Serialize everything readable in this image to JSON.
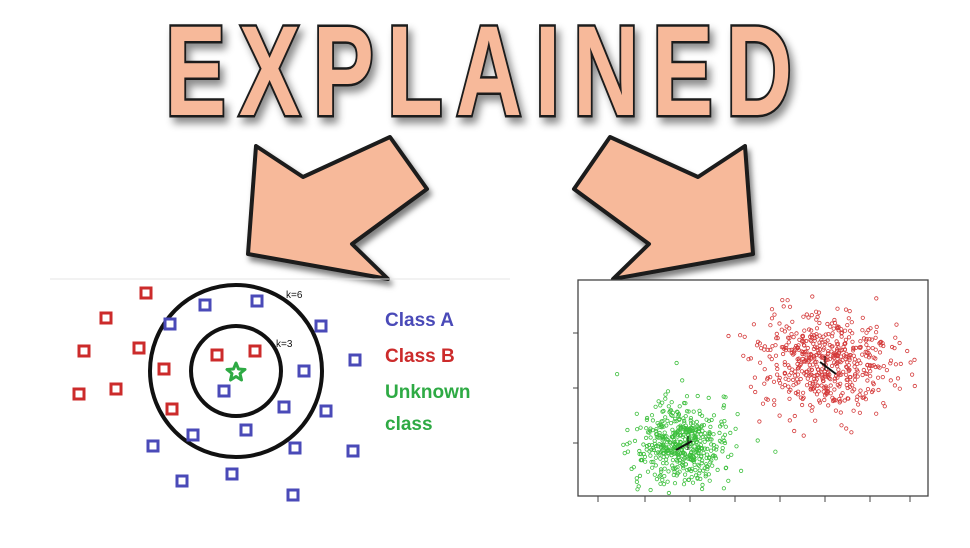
{
  "title": {
    "text": "EXPLAINED"
  },
  "knn": {
    "legend": {
      "class_a": "Class A",
      "class_b": "Class B",
      "unknown_line1": "Unknown",
      "unknown_line2": "class"
    },
    "k_outer": "k=6",
    "k_inner": "k=3"
  },
  "colors": {
    "title_fill": "#f7b99a",
    "arrow_fill": "#f7b99a",
    "class_a": "#4a4ab8",
    "class_b": "#cc2b2b",
    "unknown": "#2eaa44",
    "cluster_red": "#d43a3a",
    "cluster_green": "#3cbf3c"
  }
}
